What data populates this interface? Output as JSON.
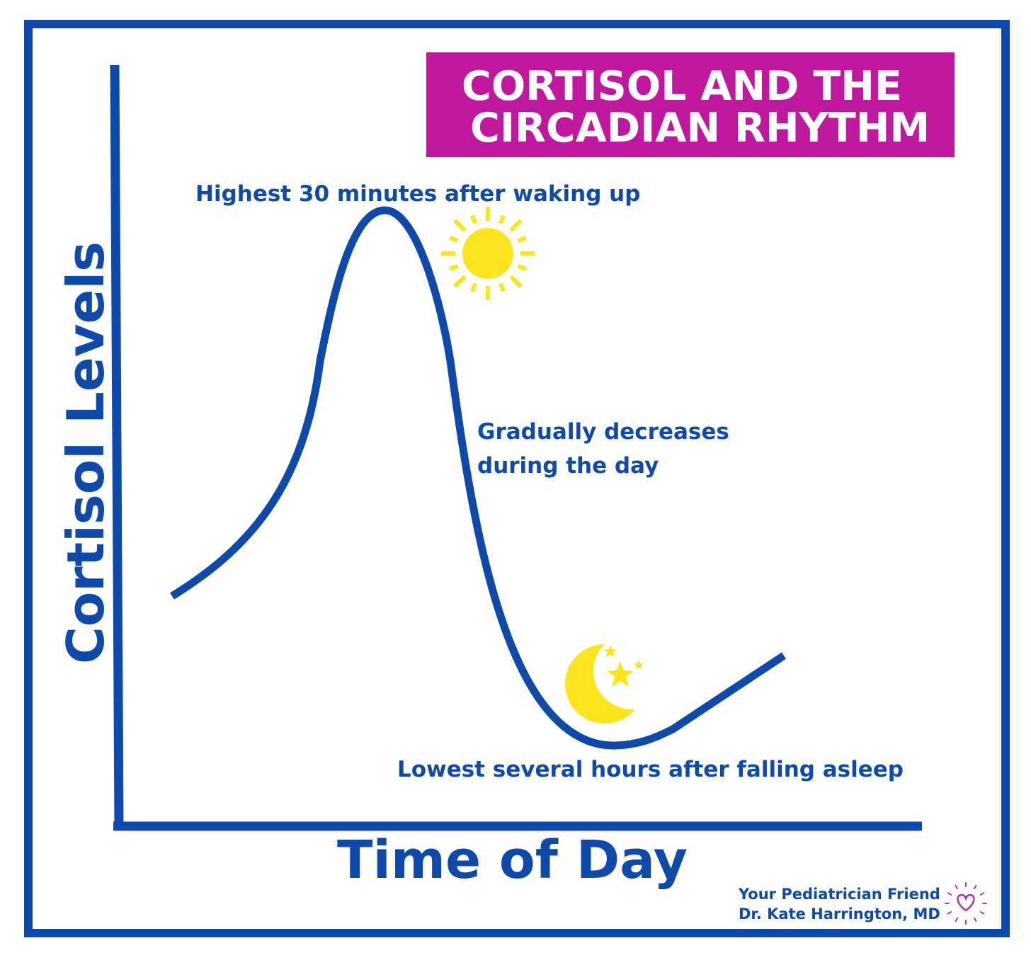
{
  "title": {
    "line1": "CORTISOL AND THE",
    "line2": "CIRCADIAN RHYTHM"
  },
  "axes": {
    "y_label": "Cortisol Levels",
    "x_label": "Time of Day"
  },
  "annotations": {
    "peak": "Highest 30 minutes after waking up",
    "decrease_line1": "Gradually decreases",
    "decrease_line2": "during the day",
    "lowest": "Lowest several hours after falling asleep"
  },
  "credit": {
    "line1": "Your Pediatrician Friend",
    "line2": "Dr. Kate Harrington, MD"
  },
  "icons": [
    "sun-icon",
    "moon-stars-icon",
    "heart-icon"
  ],
  "colors": {
    "frame": "#0d4aab",
    "curve": "#0d4aab",
    "title_background": "#c0179f",
    "title_text": "#ffffff",
    "sun": "#fde51e",
    "moon": "#fde51e",
    "heart": "#c0179f"
  }
}
